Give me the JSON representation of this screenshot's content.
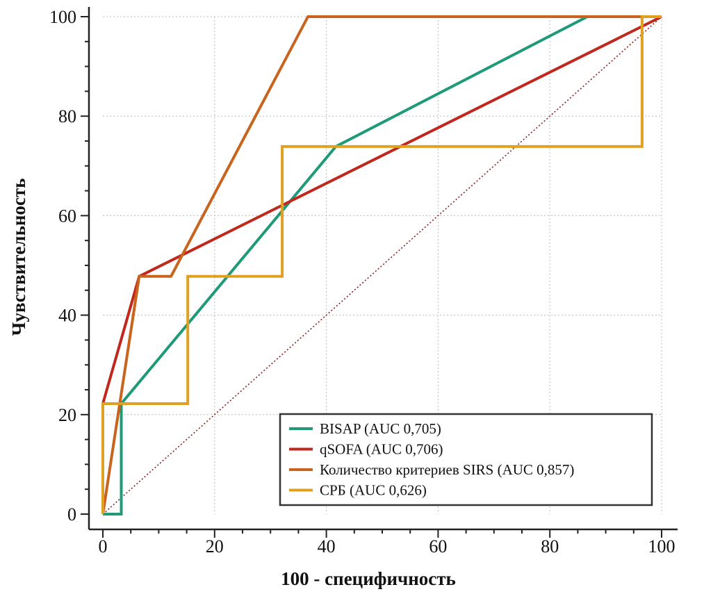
{
  "chart_data": {
    "type": "line",
    "title": "",
    "xlabel": "100 - специфичность",
    "ylabel": "Чувствительность",
    "xlim": [
      0,
      100
    ],
    "ylim": [
      0,
      100
    ],
    "xticks": [
      0,
      20,
      40,
      60,
      80,
      100
    ],
    "yticks": [
      0,
      20,
      40,
      60,
      80,
      100
    ],
    "grid": true,
    "legend_position": "bottom-right",
    "series": [
      {
        "name": "BISAP (AUC 0,705)",
        "color": "#1e9a78",
        "x": [
          0,
          3.3,
          3.3,
          41.7,
          86.7,
          100
        ],
        "y": [
          0,
          0,
          22.2,
          73.9,
          100,
          100
        ]
      },
      {
        "name": "qSOFA (AUC 0,706)",
        "color": "#c0281e",
        "x": [
          0,
          0,
          6.5,
          100
        ],
        "y": [
          0,
          22.2,
          47.8,
          100
        ]
      },
      {
        "name": "Количество критериев SIRS (AUC 0,857)",
        "color": "#c8641e",
        "x": [
          0,
          6.5,
          12.2,
          36.7,
          100
        ],
        "y": [
          0,
          47.8,
          47.8,
          100,
          100
        ]
      },
      {
        "name": "СРБ (AUC 0,626)",
        "color": "#e0a020",
        "x": [
          0,
          0,
          15.2,
          15.2,
          32.1,
          32.1,
          96.5,
          96.5,
          100
        ],
        "y": [
          0,
          22.2,
          22.2,
          47.8,
          47.8,
          73.9,
          73.9,
          100,
          100
        ]
      }
    ],
    "reference_line": {
      "x": [
        0,
        100
      ],
      "y": [
        0,
        100
      ],
      "color": "#8b1a1a",
      "style": "dotted"
    }
  }
}
